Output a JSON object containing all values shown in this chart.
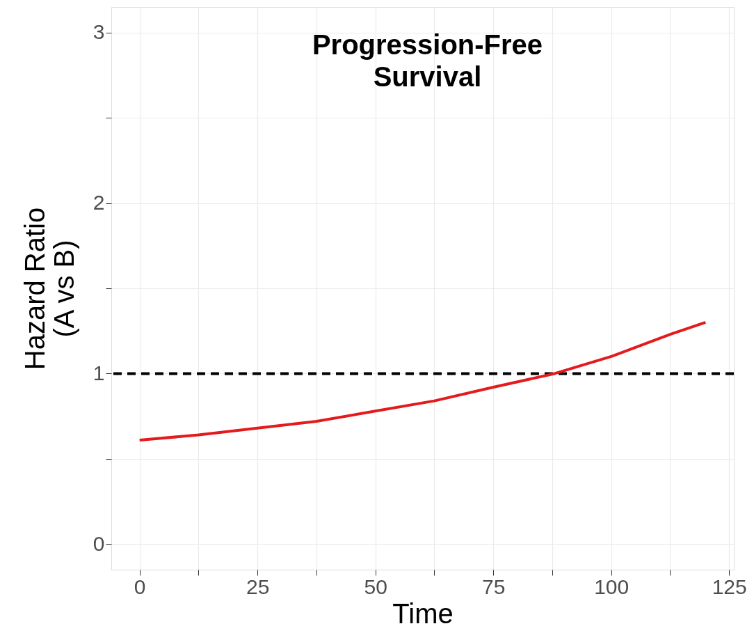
{
  "chart_data": {
    "type": "line",
    "title": "Progression-Free\nSurvival",
    "xlabel": "Time",
    "ylabel": "Hazard Ratio\n(A vs B)",
    "x": [
      0,
      12.5,
      25,
      37.5,
      50,
      62.5,
      75,
      88,
      100,
      112.5,
      120
    ],
    "series": [
      {
        "color": "#e41a1c",
        "values": [
          0.61,
          0.64,
          0.68,
          0.72,
          0.78,
          0.84,
          0.92,
          1.0,
          1.1,
          1.23,
          1.3
        ]
      }
    ],
    "xlim": [
      -6,
      126
    ],
    "ylim": [
      -0.15,
      3.15
    ],
    "xticks": [
      0,
      {
        "value": 12.5,
        "label": null
      },
      25,
      {
        "value": 37.5,
        "label": null
      },
      50,
      {
        "value": 62.5,
        "label": null
      },
      75,
      {
        "value": 87.5,
        "label": null
      },
      100,
      {
        "value": 112.5,
        "label": null
      },
      125
    ],
    "yticks": [
      0,
      {
        "value": 0.5,
        "label": null
      },
      1,
      {
        "value": 1.5,
        "label": null
      },
      2,
      {
        "value": 2.5,
        "label": null
      },
      3
    ],
    "ref_lines": [
      {
        "axis": "y",
        "value": 1,
        "color": "#000000",
        "line_style": "dashed"
      }
    ],
    "grid": true,
    "marker": "none",
    "line_style": "solid"
  }
}
